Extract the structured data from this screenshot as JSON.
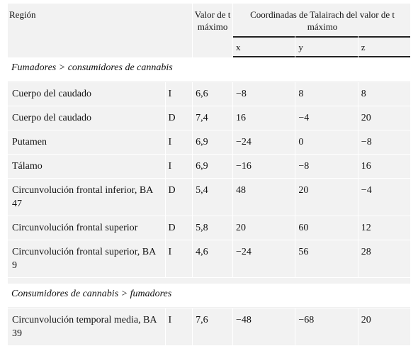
{
  "header": {
    "region": "Región",
    "tvalue": "Valor de t máximo",
    "coords": "Coordinadas de Talairach del valor de t máximo",
    "x": "x",
    "y": "y",
    "z": "z"
  },
  "section1": {
    "title": "Fumadores > consumidores de cannabis",
    "rows": [
      {
        "region": "Cuerpo del caudado",
        "side": "I",
        "t": "6,6",
        "x": "−8",
        "y": "8",
        "z": "8"
      },
      {
        "region": "Cuerpo del caudado",
        "side": "D",
        "t": "7,4",
        "x": "16",
        "y": "−4",
        "z": "20"
      },
      {
        "region": "Putamen",
        "side": "I",
        "t": "6,9",
        "x": "−24",
        "y": "0",
        "z": "−8"
      },
      {
        "region": "Tálamo",
        "side": "I",
        "t": "6,9",
        "x": "−16",
        "y": "−8",
        "z": "16"
      },
      {
        "region": "Circunvolución frontal inferior, BA 47",
        "side": "D",
        "t": "5,4",
        "x": "48",
        "y": "20",
        "z": "−4"
      },
      {
        "region": "Circunvolución frontal superior",
        "side": "D",
        "t": "5,8",
        "x": "20",
        "y": "60",
        "z": "12"
      },
      {
        "region": "Circunvolución frontal superior, BA 9",
        "side": "I",
        "t": "4,6",
        "x": "−24",
        "y": "56",
        "z": "28"
      }
    ]
  },
  "section2": {
    "title": "Consumidores de cannabis > fumadores",
    "rows": [
      {
        "region": "Circunvolución temporal media, BA 39",
        "side": "I",
        "t": "7,6",
        "x": "−48",
        "y": "−68",
        "z": "20"
      }
    ]
  }
}
